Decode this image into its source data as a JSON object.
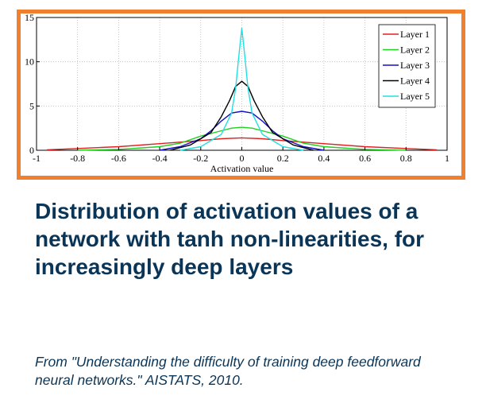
{
  "caption": "Distribution of activation values of a network with tanh non-linearities, for increasingly deep layers",
  "source": "From \"Understanding the difficulty of training deep feedforward neural networks.\" AISTATS, 2010.",
  "chart_data": {
    "type": "line",
    "title": "",
    "xlabel": "Activation value",
    "ylabel": "",
    "xlim": [
      -1,
      1
    ],
    "ylim": [
      0,
      15
    ],
    "xticks": [
      "-1",
      "-0.8",
      "-0.6",
      "-0.4",
      "-0.2",
      "0",
      "0.2",
      "0.4",
      "0.6",
      "0.8",
      "1"
    ],
    "yticks": [
      "0",
      "5",
      "10",
      "15"
    ],
    "grid": true,
    "legend_position": "top-right",
    "series": [
      {
        "name": "Layer 1",
        "color": "#e02020",
        "x": [
          -0.95,
          -0.8,
          -0.6,
          -0.4,
          -0.2,
          -0.1,
          0,
          0.1,
          0.2,
          0.4,
          0.6,
          0.8,
          0.95
        ],
        "y": [
          0.05,
          0.2,
          0.4,
          0.75,
          1.1,
          1.3,
          1.4,
          1.3,
          1.1,
          0.75,
          0.4,
          0.2,
          0.05
        ]
      },
      {
        "name": "Layer 2",
        "color": "#20d020",
        "x": [
          -0.8,
          -0.6,
          -0.4,
          -0.3,
          -0.2,
          -0.1,
          -0.05,
          0,
          0.05,
          0.1,
          0.2,
          0.3,
          0.4,
          0.6,
          0.8
        ],
        "y": [
          0.0,
          0.1,
          0.4,
          0.8,
          1.6,
          2.2,
          2.5,
          2.6,
          2.5,
          2.2,
          1.6,
          0.8,
          0.4,
          0.1,
          0.0
        ]
      },
      {
        "name": "Layer 3",
        "color": "#1010c0",
        "x": [
          -0.4,
          -0.3,
          -0.2,
          -0.15,
          -0.1,
          -0.05,
          0,
          0.05,
          0.1,
          0.15,
          0.2,
          0.3,
          0.4
        ],
        "y": [
          0.0,
          0.4,
          1.3,
          2.2,
          3.3,
          4.2,
          4.4,
          4.2,
          3.3,
          2.2,
          1.3,
          0.4,
          0.0
        ]
      },
      {
        "name": "Layer 4",
        "color": "#000000",
        "x": [
          -0.35,
          -0.25,
          -0.15,
          -0.1,
          -0.06,
          -0.03,
          0,
          0.03,
          0.06,
          0.1,
          0.15,
          0.25,
          0.35
        ],
        "y": [
          0.0,
          0.6,
          2.0,
          3.8,
          5.6,
          7.2,
          7.8,
          7.2,
          5.6,
          3.8,
          2.0,
          0.6,
          0.0
        ]
      },
      {
        "name": "Layer 5",
        "color": "#20e0e0",
        "x": [
          -0.3,
          -0.2,
          -0.1,
          -0.05,
          -0.03,
          -0.015,
          0,
          0.015,
          0.03,
          0.05,
          0.1,
          0.2,
          0.3
        ],
        "y": [
          0.0,
          0.4,
          1.8,
          4.2,
          7.0,
          10.5,
          13.8,
          10.5,
          7.0,
          4.2,
          1.8,
          0.4,
          0.0
        ]
      }
    ]
  }
}
